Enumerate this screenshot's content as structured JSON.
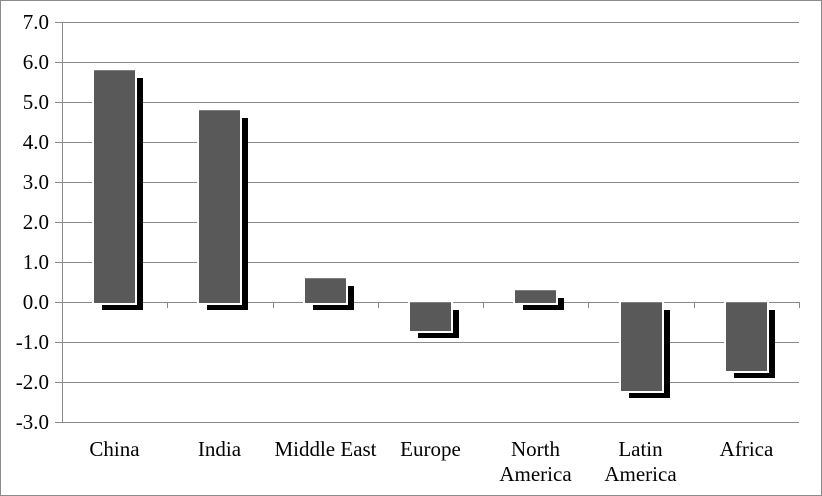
{
  "chart_data": {
    "type": "bar",
    "title": "",
    "xlabel": "",
    "ylabel": "",
    "categories": [
      "China",
      "India",
      "Middle East",
      "Europe",
      "North America",
      "Latin America",
      "Africa"
    ],
    "category_labels": [
      "China",
      "India",
      "Middle East",
      "Europe",
      "North\nAmerica",
      "Latin\nAmerica",
      "Africa"
    ],
    "values": [
      5.8,
      4.8,
      0.6,
      -0.7,
      0.3,
      -2.2,
      -1.7
    ],
    "ylim": [
      -3.0,
      7.0
    ],
    "ytick_interval": 1.0,
    "ytick_labels": [
      "7.0",
      "6.0",
      "5.0",
      "4.0",
      "3.0",
      "2.0",
      "1.0",
      "0.0",
      "-1.0",
      "-2.0",
      "-3.0"
    ],
    "grid": true,
    "legend": false,
    "colors": {
      "bar_fill": "#595959",
      "bar_shadow": "#000000",
      "gridline": "#8a8a8a",
      "axis": "#8a8a8a",
      "text": "#000000",
      "frame_border": "#8c8c8c",
      "background": "#ffffff"
    }
  }
}
